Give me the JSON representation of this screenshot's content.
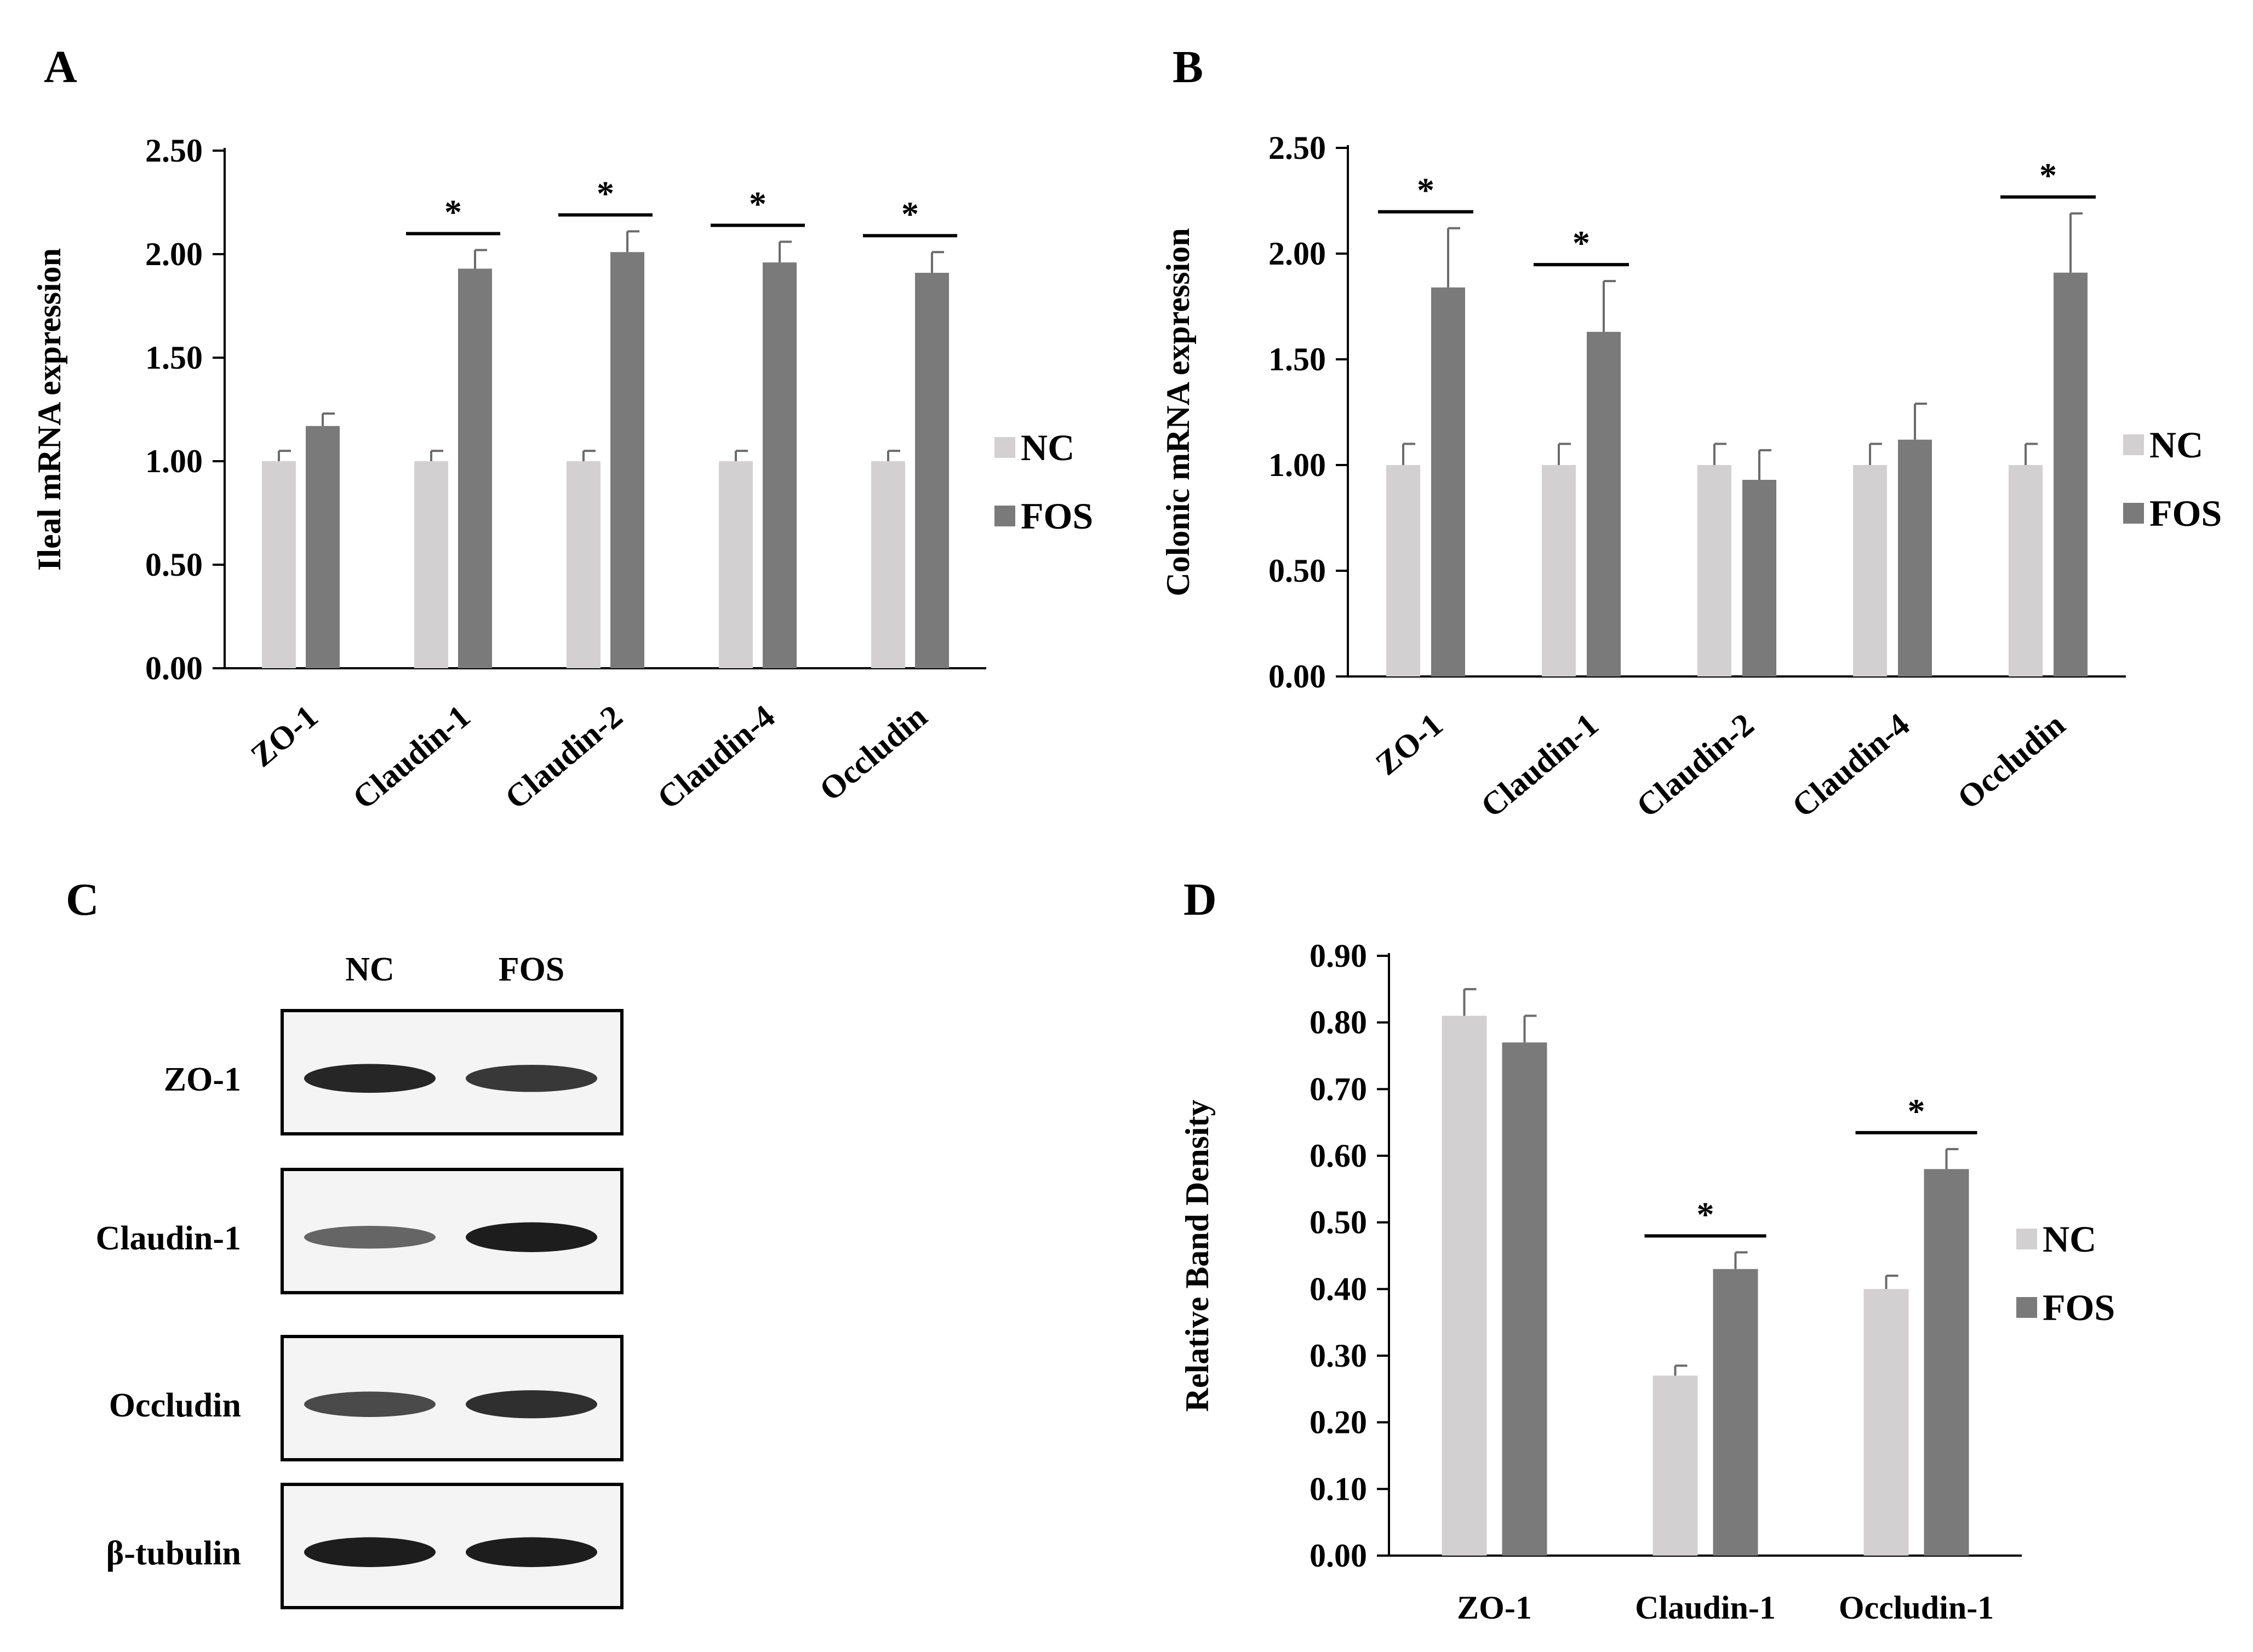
{
  "colors": {
    "nc": "#d3d0d1",
    "fos": "#7a7a7a",
    "axis": "#000000",
    "err": "#6b6b6b"
  },
  "panels": {
    "A": {
      "letter": "A"
    },
    "B": {
      "letter": "B"
    },
    "C": {
      "letter": "C"
    },
    "D": {
      "letter": "D"
    }
  },
  "chart_data": [
    {
      "id": "A",
      "type": "bar",
      "title": "",
      "xlabel": "",
      "ylabel": "Ileal mRNA expression",
      "ylim": [
        0,
        2.5
      ],
      "yticks": [
        "0.00",
        "0.50",
        "1.00",
        "1.50",
        "2.00",
        "2.50"
      ],
      "categories": [
        "ZO-1",
        "Claudin-1",
        "Claudin-2",
        "Claudin-4",
        "Occludin"
      ],
      "series": [
        {
          "name": "NC",
          "values": [
            1.0,
            1.0,
            1.0,
            1.0,
            1.0
          ],
          "errors": [
            0.05,
            0.05,
            0.05,
            0.05,
            0.05
          ]
        },
        {
          "name": "FOS",
          "values": [
            1.17,
            1.93,
            2.01,
            1.96,
            1.91
          ],
          "errors": [
            0.06,
            0.09,
            0.1,
            0.1,
            0.1
          ]
        }
      ],
      "significant": [
        false,
        true,
        true,
        true,
        true
      ],
      "significance_symbol": "*",
      "legend": "right",
      "grid": false
    },
    {
      "id": "B",
      "type": "bar",
      "title": "",
      "xlabel": "",
      "ylabel": "Colonic mRNA expression",
      "ylim": [
        0,
        2.5
      ],
      "yticks": [
        "0.00",
        "0.50",
        "1.00",
        "1.50",
        "2.00",
        "2.50"
      ],
      "categories": [
        "ZO-1",
        "Claudin-1",
        "Claudin-2",
        "Claudin-4",
        "Occludin"
      ],
      "series": [
        {
          "name": "NC",
          "values": [
            1.0,
            1.0,
            1.0,
            1.0,
            1.0
          ],
          "errors": [
            0.1,
            0.1,
            0.1,
            0.1,
            0.1
          ]
        },
        {
          "name": "FOS",
          "values": [
            1.84,
            1.63,
            0.93,
            1.12,
            1.91
          ],
          "errors": [
            0.28,
            0.24,
            0.14,
            0.17,
            0.28
          ]
        }
      ],
      "significant": [
        true,
        true,
        false,
        false,
        true
      ],
      "significance_symbol": "*",
      "legend": "right",
      "grid": false
    },
    {
      "id": "D",
      "type": "bar",
      "title": "",
      "xlabel": "",
      "ylabel": "Relative Band Density",
      "ylim": [
        0,
        0.9
      ],
      "yticks": [
        "0.00",
        "0.10",
        "0.20",
        "0.30",
        "0.40",
        "0.50",
        "0.60",
        "0.70",
        "0.80",
        "0.90"
      ],
      "categories": [
        "ZO-1",
        "Claudin-1",
        "Occludin-1"
      ],
      "series": [
        {
          "name": "NC",
          "values": [
            0.81,
            0.27,
            0.4
          ],
          "errors": [
            0.04,
            0.015,
            0.02
          ]
        },
        {
          "name": "FOS",
          "values": [
            0.77,
            0.43,
            0.58
          ],
          "errors": [
            0.04,
            0.025,
            0.03
          ]
        }
      ],
      "significant": [
        false,
        true,
        true
      ],
      "significance_symbol": "*",
      "legend": "right",
      "grid": false
    }
  ],
  "blot": {
    "lane_labels": [
      "NC",
      "FOS"
    ],
    "rows": [
      {
        "label": "ZO-1",
        "intensity": [
          0.9,
          0.8
        ]
      },
      {
        "label": "Claudin-1",
        "intensity": [
          0.55,
          0.95
        ]
      },
      {
        "label": "Occludin",
        "intensity": [
          0.7,
          0.85
        ]
      },
      {
        "label": "β-tubulin",
        "intensity": [
          0.95,
          0.95
        ]
      }
    ]
  }
}
